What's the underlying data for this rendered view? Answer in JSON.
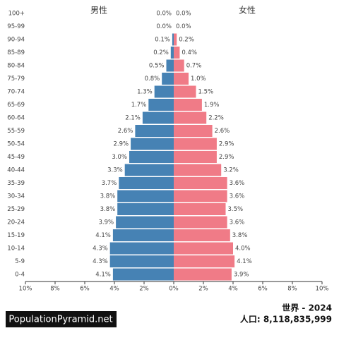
{
  "chart_data": {
    "type": "pyramid",
    "categories": [
      "100+",
      "95-99",
      "90-94",
      "85-89",
      "80-84",
      "75-79",
      "70-74",
      "65-69",
      "60-64",
      "55-59",
      "50-54",
      "45-49",
      "40-44",
      "35-39",
      "30-34",
      "25-29",
      "20-24",
      "15-19",
      "10-14",
      "5-9",
      "0-4"
    ],
    "series": [
      {
        "name": "男性",
        "side": "left",
        "color": "#4682b4",
        "values": [
          0.0,
          0.0,
          0.1,
          0.2,
          0.5,
          0.8,
          1.3,
          1.7,
          2.1,
          2.6,
          2.9,
          3.0,
          3.3,
          3.7,
          3.8,
          3.8,
          3.9,
          4.1,
          4.3,
          4.3,
          4.1
        ],
        "value_labels": [
          "0.0%",
          "0.0%",
          "0.1%",
          "0.2%",
          "0.5%",
          "0.8%",
          "1.3%",
          "1.7%",
          "2.1%",
          "2.6%",
          "2.9%",
          "3.0%",
          "3.3%",
          "3.7%",
          "3.8%",
          "3.8%",
          "3.9%",
          "4.1%",
          "4.3%",
          "4.3%",
          "4.1%"
        ]
      },
      {
        "name": "女性",
        "side": "right",
        "color": "#f07b87",
        "values": [
          0.0,
          0.0,
          0.2,
          0.4,
          0.7,
          1.0,
          1.5,
          1.9,
          2.2,
          2.6,
          2.9,
          2.9,
          3.2,
          3.6,
          3.6,
          3.5,
          3.6,
          3.8,
          4.0,
          4.1,
          3.9
        ],
        "value_labels": [
          "0.0%",
          "0.0%",
          "0.2%",
          "0.4%",
          "0.7%",
          "1.0%",
          "1.5%",
          "1.9%",
          "2.2%",
          "2.6%",
          "2.9%",
          "2.9%",
          "3.2%",
          "3.6%",
          "3.6%",
          "3.5%",
          "3.6%",
          "3.8%",
          "4.0%",
          "4.1%",
          "3.9%"
        ]
      }
    ],
    "xlim": [
      -10,
      10
    ],
    "xticks": [
      {
        "value": -10,
        "label": "10%"
      },
      {
        "value": -8,
        "label": "8%"
      },
      {
        "value": -6,
        "label": "6%"
      },
      {
        "value": -4,
        "label": "4%"
      },
      {
        "value": -2,
        "label": "2%"
      },
      {
        "value": 0,
        "label": "0%"
      },
      {
        "value": 2,
        "label": "2%"
      },
      {
        "value": 4,
        "label": "4%"
      },
      {
        "value": 6,
        "label": "6%"
      },
      {
        "value": 8,
        "label": "8%"
      },
      {
        "value": 10,
        "label": "10%"
      }
    ],
    "source": "PopulationPyramid.net",
    "title": "世界 - 2024",
    "population": "人口: 8,118,835,999"
  }
}
